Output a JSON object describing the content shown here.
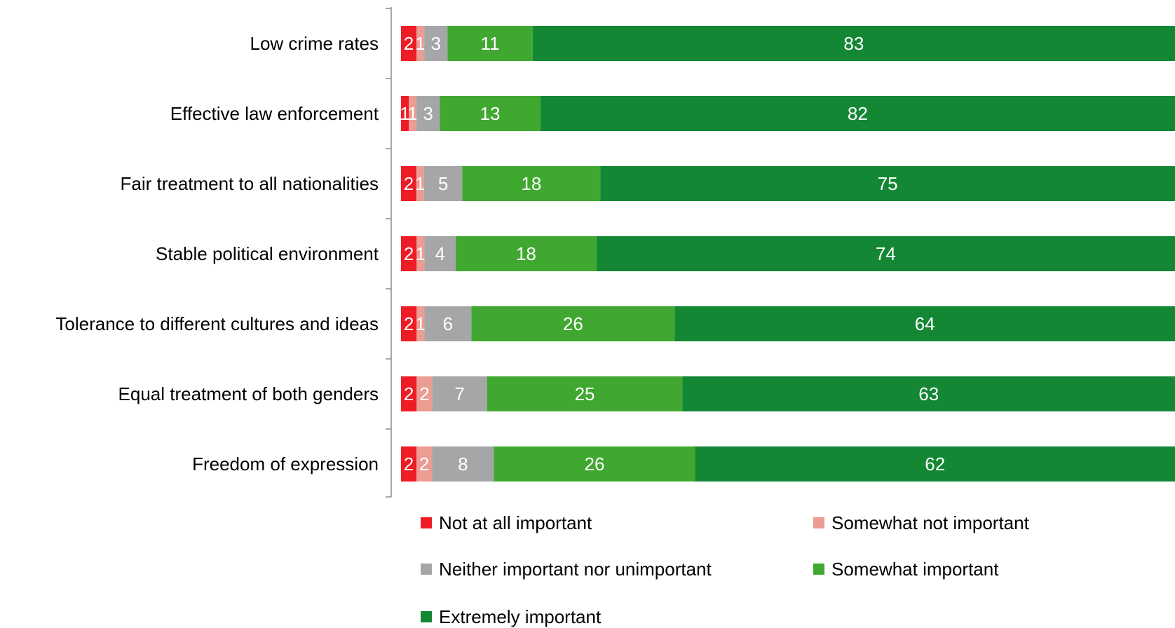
{
  "chart_data": {
    "type": "bar",
    "orientation": "horizontal",
    "stacked": true,
    "normalized_to": 100,
    "categories": [
      "Low crime rates",
      "Effective law enforcement",
      "Fair treatment to all nationalities",
      "Stable political environment",
      "Tolerance to different cultures and ideas",
      "Equal treatment of both genders",
      "Freedom of expression"
    ],
    "series": [
      {
        "name": "Not at all important",
        "color": "#ee1c25",
        "values": [
          2,
          1,
          2,
          2,
          2,
          2,
          2
        ]
      },
      {
        "name": "Somewhat not important",
        "color": "#eb9d93",
        "values": [
          1,
          1,
          1,
          1,
          1,
          2,
          2
        ]
      },
      {
        "name": "Neither important nor unimportant",
        "color": "#a6a6a8",
        "values": [
          3,
          3,
          5,
          4,
          6,
          7,
          8
        ]
      },
      {
        "name": "Somewhat important",
        "color": "#40a830",
        "values": [
          11,
          13,
          18,
          18,
          26,
          25,
          26
        ]
      },
      {
        "name": "Extremely important",
        "color": "#138734",
        "values": [
          83,
          82,
          75,
          74,
          64,
          63,
          62
        ]
      }
    ],
    "xlim": [
      0,
      100
    ],
    "grid": false,
    "legend_position": "bottom",
    "title": "",
    "xlabel": "",
    "ylabel": ""
  }
}
